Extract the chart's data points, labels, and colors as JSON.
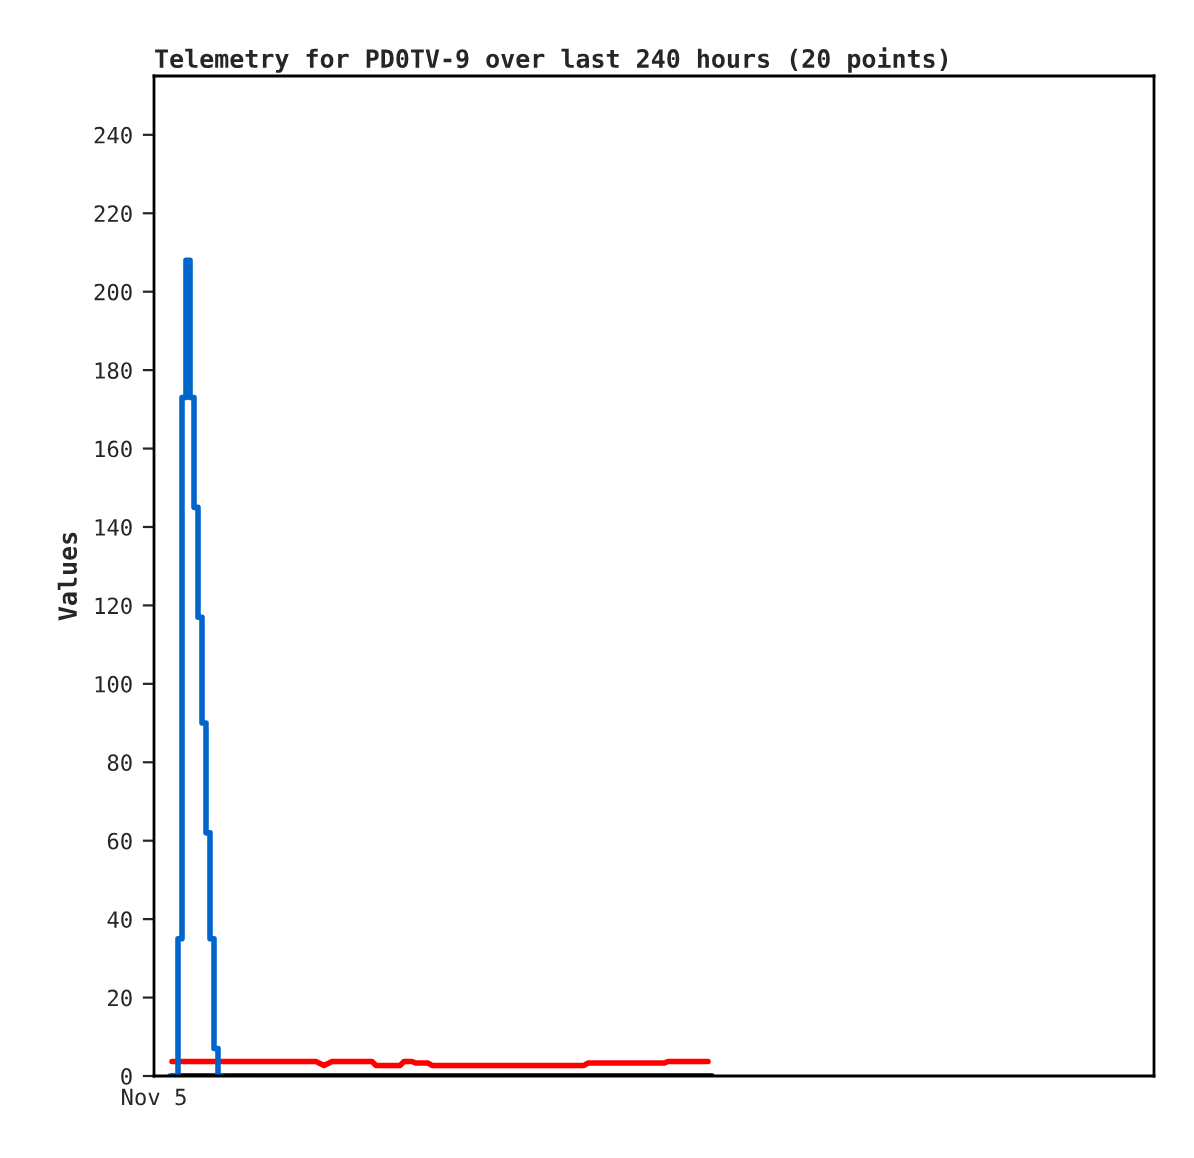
{
  "chart_data": {
    "type": "line",
    "title": "Telemetry for PD0TV-9 over last 240 hours (20 points)",
    "ylabel": "Values",
    "annotations": [
      "Nov 5"
    ],
    "ylim": [
      0,
      255
    ],
    "yticks": [
      0,
      20,
      40,
      60,
      80,
      100,
      120,
      140,
      160,
      180,
      200,
      220,
      240
    ],
    "grid": false,
    "categories": [
      null,
      null,
      null,
      null,
      null,
      null,
      null,
      null,
      null,
      null,
      null,
      null,
      null,
      null,
      null,
      null,
      null,
      null,
      null,
      null,
      null,
      null,
      null,
      null,
      null,
      null,
      null,
      null,
      null,
      null,
      null,
      null,
      null,
      null,
      null,
      null,
      null,
      null,
      null,
      null,
      null,
      null,
      null,
      null,
      null,
      null,
      null,
      null,
      null,
      null,
      null,
      null,
      null,
      null,
      null,
      null,
      null,
      null,
      null,
      null,
      null,
      null,
      null,
      null,
      null,
      null,
      null,
      null,
      null,
      null,
      null,
      null,
      null,
      null,
      null,
      null,
      null,
      null,
      null,
      null,
      null,
      null,
      null,
      null,
      null,
      null,
      null,
      null,
      null,
      null,
      null,
      null,
      null,
      null,
      null,
      null,
      null,
      null,
      null,
      null,
      null,
      null,
      null,
      null,
      null,
      null,
      null,
      null,
      null,
      null,
      null,
      null,
      null,
      null,
      null,
      null,
      null,
      null,
      null,
      null,
      null,
      null,
      null,
      null,
      null,
      null,
      null,
      null,
      null,
      null,
      null,
      null,
      null,
      null,
      null,
      null,
      null,
      null,
      null,
      null,
      null,
      null,
      null,
      null,
      null,
      null,
      null,
      null,
      null,
      null,
      null,
      null,
      null,
      null,
      null,
      null,
      null,
      null,
      null,
      null,
      null,
      null,
      null,
      null,
      null,
      null,
      null,
      null,
      null,
      null,
      null,
      null,
      null,
      null,
      null,
      null,
      null,
      null,
      null,
      null,
      null,
      null,
      null,
      null,
      null,
      null,
      null,
      null,
      null,
      null,
      null,
      null,
      null,
      null,
      null,
      null,
      null,
      null,
      null,
      null,
      null,
      null,
      null,
      null,
      null,
      null,
      null,
      null,
      null,
      null,
      null,
      null,
      null,
      null,
      null,
      null,
      null,
      null,
      null,
      null,
      null,
      null,
      null,
      null,
      null,
      null,
      null,
      null,
      null,
      null,
      null,
      null,
      null,
      null,
      null,
      null,
      null,
      null,
      null,
      null,
      null,
      null,
      null,
      null,
      null,
      null,
      null,
      null,
      null,
      null
    ],
    "series": [
      {
        "color": "#ff0000",
        "values": [
          null,
          null,
          null,
          null,
          3.7,
          3.7,
          3.7,
          3.7,
          3.7,
          3.7,
          3.7,
          3.7,
          3.7,
          3.7,
          3.7,
          3.7,
          3.7,
          3.7,
          3.7,
          3.7,
          3.7,
          3.7,
          3.7,
          3.7,
          3.7,
          3.7,
          3.7,
          3.7,
          3.7,
          3.7,
          3.7,
          3.7,
          3.7,
          3.7,
          3.7,
          3.7,
          3.7,
          3.7,
          3.7,
          3.7,
          3.7,
          3.2,
          2.7,
          3.2,
          3.7,
          3.7,
          3.7,
          3.7,
          3.7,
          3.7,
          3.7,
          3.7,
          3.7,
          3.7,
          3.7,
          2.7,
          2.7,
          2.7,
          2.7,
          2.7,
          2.7,
          2.7,
          3.7,
          3.7,
          3.7,
          3.3,
          3.3,
          3.3,
          3.3,
          2.7,
          2.7,
          2.7,
          2.7,
          2.7,
          2.7,
          2.7,
          2.7,
          2.7,
          2.7,
          2.7,
          2.7,
          2.7,
          2.7,
          2.7,
          2.7,
          2.7,
          2.7,
          2.7,
          2.7,
          2.7,
          2.7,
          2.7,
          2.7,
          2.7,
          2.7,
          2.7,
          2.7,
          2.7,
          2.7,
          2.7,
          2.7,
          2.7,
          2.7,
          2.7,
          2.7,
          2.7,
          2.7,
          2.7,
          3.3,
          3.3,
          3.3,
          3.3,
          3.3,
          3.3,
          3.3,
          3.3,
          3.3,
          3.3,
          3.3,
          3.3,
          3.3,
          3.3,
          3.3,
          3.3,
          3.3,
          3.3,
          3.3,
          3.3,
          3.7,
          3.7,
          3.7,
          3.7,
          3.7,
          3.7,
          3.7,
          3.7,
          3.7,
          3.7,
          3.7,
          null,
          null,
          null,
          null,
          null,
          null,
          null,
          null,
          null,
          null,
          null,
          null,
          null,
          null,
          null,
          null,
          null,
          null,
          null,
          null,
          null,
          null,
          null,
          null,
          null,
          null,
          null,
          null,
          null,
          null,
          null,
          null,
          null,
          null,
          null,
          null,
          null,
          null,
          null,
          null,
          null,
          null,
          null,
          null,
          null,
          null,
          null,
          null,
          null,
          null,
          null,
          null,
          null,
          null,
          null,
          null,
          null,
          null,
          null,
          null,
          null,
          null,
          null,
          null,
          null,
          null,
          null,
          null,
          null,
          null,
          null,
          null,
          null,
          null,
          null,
          null,
          null,
          null,
          null,
          null,
          null,
          null,
          null,
          null,
          null,
          null,
          null,
          null,
          null,
          null,
          null,
          null,
          null,
          null,
          null,
          null,
          null,
          null,
          null,
          null,
          null,
          null,
          null,
          null,
          null,
          null,
          null,
          null,
          null,
          null,
          null
        ]
      },
      {
        "color": "#000000",
        "values": [
          null,
          null,
          null,
          null,
          0,
          0,
          0,
          0,
          0,
          0,
          0,
          0,
          0,
          0,
          0,
          0,
          0,
          0,
          0,
          0,
          0,
          0,
          0,
          0,
          0,
          0,
          0,
          0,
          0,
          0,
          0,
          0,
          0,
          0,
          0,
          0,
          0,
          0,
          0,
          0,
          0,
          0,
          0,
          0,
          0,
          0,
          0,
          0,
          0,
          0,
          0,
          0,
          0,
          0,
          0,
          0,
          0,
          0,
          0,
          0,
          0,
          0,
          0,
          0,
          0,
          0,
          0,
          0,
          0,
          0,
          0,
          0,
          0,
          0,
          0,
          0,
          0,
          0,
          0,
          0,
          0,
          0,
          0,
          0,
          0,
          0,
          0,
          0,
          0,
          0,
          0,
          0,
          0,
          0,
          0,
          0,
          0,
          0,
          0,
          0,
          0,
          0,
          0,
          0,
          0,
          0,
          0,
          0,
          0,
          0,
          0,
          0,
          0,
          0,
          0,
          0,
          0,
          0,
          0,
          0,
          0,
          0,
          0,
          0,
          0,
          0,
          0,
          0,
          0,
          0,
          0,
          0,
          0,
          0,
          0,
          0,
          0,
          0,
          0,
          0,
          null,
          null,
          null,
          null,
          null,
          null,
          null,
          null,
          null,
          null,
          null,
          null,
          null,
          null,
          null,
          null,
          null,
          null,
          null,
          null,
          null,
          null,
          null,
          null,
          null,
          null,
          null,
          null,
          null,
          null,
          null,
          null,
          null,
          null,
          null,
          null,
          null,
          null,
          null,
          null,
          null,
          null,
          null,
          null,
          null,
          null,
          null,
          null,
          null,
          null,
          null,
          null,
          null,
          null,
          null,
          null,
          null,
          null,
          null,
          null,
          null,
          null,
          null,
          null,
          null,
          null,
          null,
          null,
          null,
          null,
          null,
          null,
          null,
          null,
          null,
          null,
          null,
          null,
          null,
          null,
          null,
          null,
          null,
          null,
          null,
          null,
          null,
          null,
          null,
          null,
          null,
          null,
          null,
          null,
          null,
          null,
          null,
          null,
          null,
          null,
          null,
          null,
          null,
          null,
          null,
          null,
          null,
          null,
          null,
          null
        ]
      },
      {
        "type": "step",
        "color": "#0066cc",
        "values": [
          null,
          null,
          null,
          null,
          0,
          0,
          35,
          173,
          208,
          173,
          145,
          117,
          90,
          62,
          35,
          7,
          0,
          null,
          null,
          null,
          null,
          null,
          null,
          null,
          null,
          null,
          null,
          null,
          null,
          null,
          null,
          null,
          null,
          null,
          null,
          null,
          null,
          null,
          null,
          null,
          null,
          null,
          null,
          null,
          null,
          null,
          null,
          null,
          null,
          null,
          null,
          null,
          null,
          null,
          null,
          null,
          null,
          null,
          null,
          null,
          null,
          null,
          null,
          null,
          null,
          null,
          null,
          null,
          null,
          null,
          null,
          null,
          null,
          null,
          null,
          null,
          null,
          null,
          null,
          null,
          null,
          null,
          null,
          null,
          null,
          null,
          null,
          null,
          null,
          null,
          null,
          null,
          null,
          null,
          null,
          null,
          null,
          null,
          null,
          null,
          null,
          null,
          null,
          null,
          null,
          null,
          null,
          null,
          null,
          null,
          null,
          null,
          null,
          null,
          null,
          null,
          null,
          null,
          null,
          null,
          null,
          null,
          null,
          null,
          null,
          null,
          null,
          null,
          null,
          null,
          null,
          null,
          null,
          null,
          null,
          null,
          null,
          null,
          null,
          null,
          null,
          null,
          null,
          null,
          null,
          null,
          null,
          null,
          null,
          null,
          null,
          null,
          null,
          null,
          null,
          null,
          null,
          null,
          null,
          null,
          null,
          null,
          null,
          null,
          null,
          null,
          null,
          null,
          null,
          null,
          null,
          null,
          null,
          null,
          null,
          null,
          null,
          null,
          null,
          null,
          null,
          null,
          null,
          null,
          null,
          null,
          null,
          null,
          null,
          null,
          null,
          null,
          null,
          null,
          null,
          null,
          null,
          null,
          null,
          null,
          null,
          null,
          null,
          null,
          null,
          null,
          null,
          null,
          null,
          null,
          null,
          null,
          null,
          null,
          null,
          null,
          null,
          null,
          null,
          null,
          null,
          null,
          null,
          null,
          null,
          null,
          null,
          null,
          null,
          null,
          null,
          null,
          null,
          null,
          null,
          null,
          null,
          null,
          null,
          null,
          null,
          null,
          null,
          null,
          null,
          null,
          null,
          null,
          null,
          null
        ]
      }
    ]
  }
}
